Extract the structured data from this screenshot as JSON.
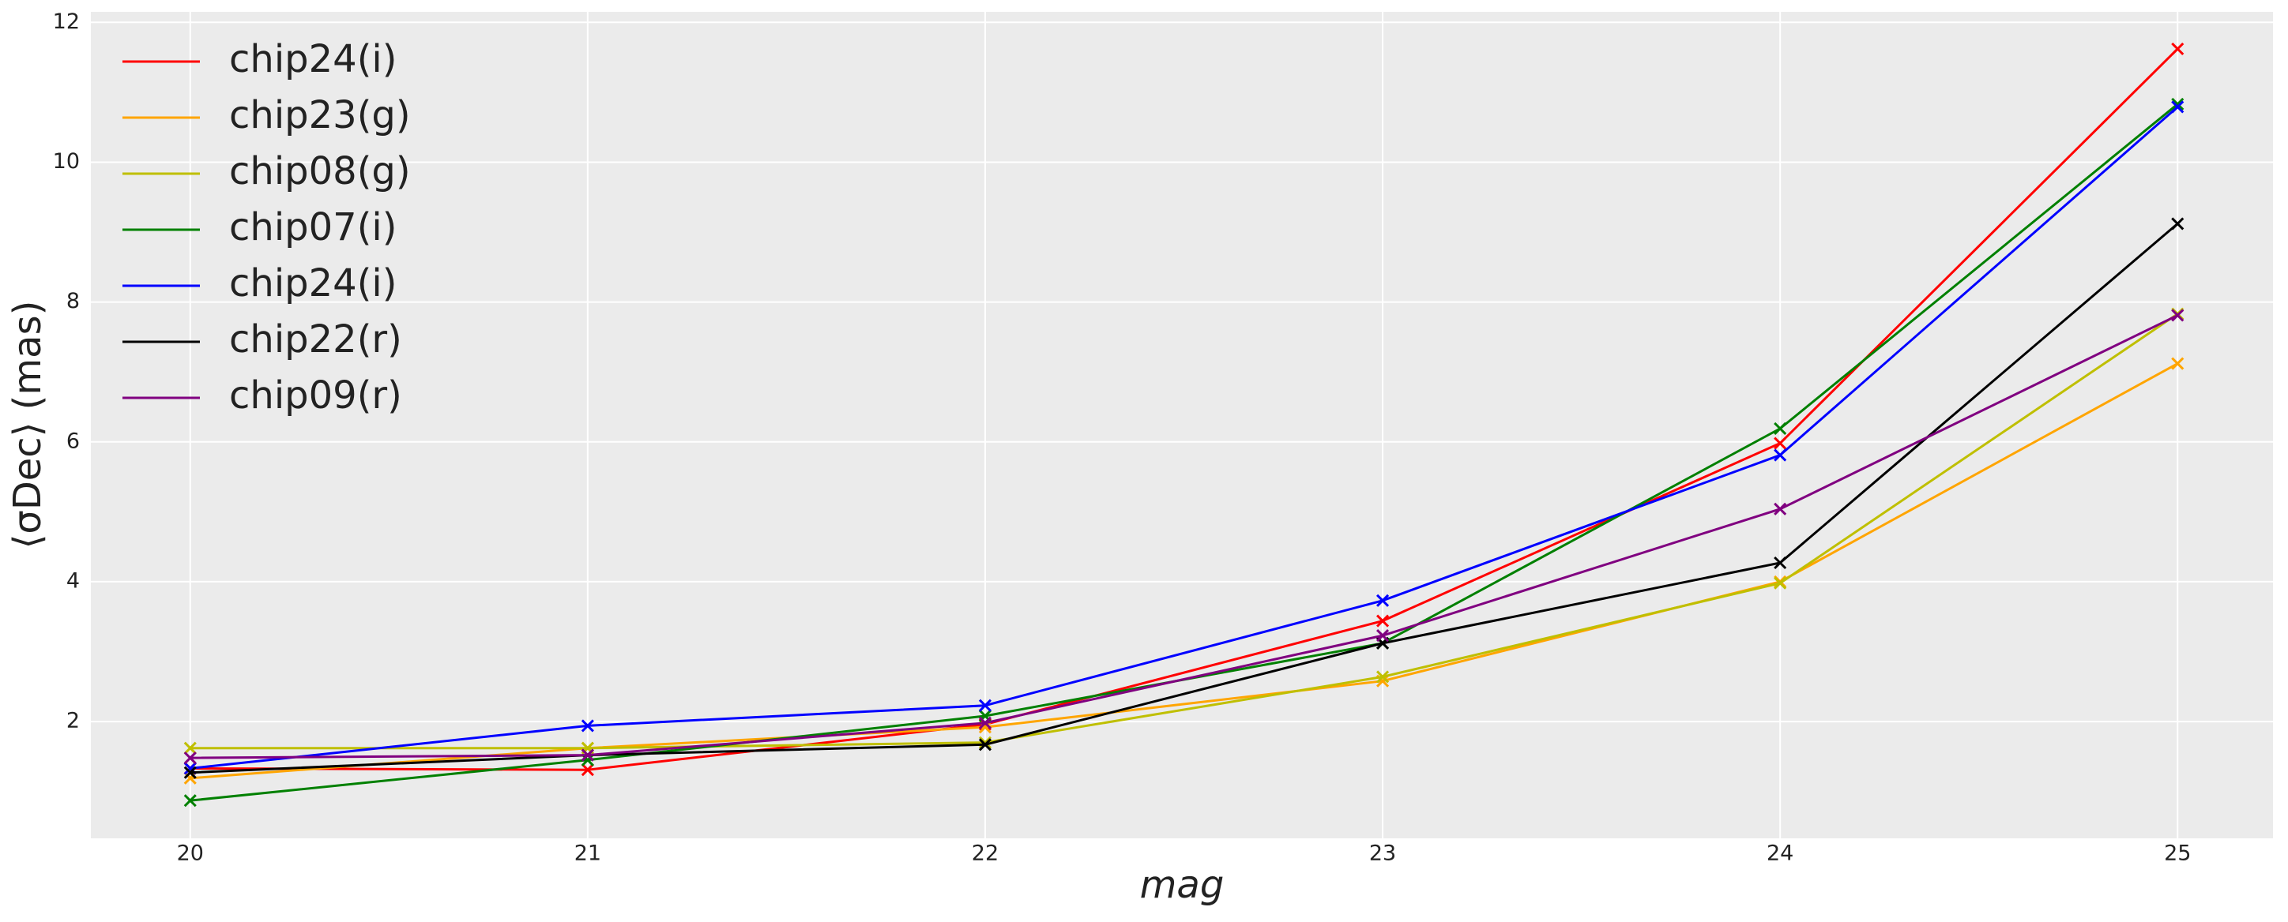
{
  "chart_data": {
    "type": "line",
    "xlabel": "mag",
    "ylabel": "⟨σDec⟩ (mas)",
    "x": [
      20,
      21,
      22,
      23,
      24,
      25
    ],
    "xlim": [
      19.75,
      25.24
    ],
    "xticks": [
      20,
      21,
      22,
      23,
      24,
      25
    ],
    "ylim": [
      0.33,
      12.15
    ],
    "yticks": [
      2,
      4,
      6,
      8,
      10,
      12
    ],
    "grid": true,
    "legend": "upper left",
    "marker": "x",
    "series": [
      {
        "name": "chip24(i)",
        "color": "#ff0000",
        "values": [
          1.33,
          1.31,
          1.96,
          3.44,
          5.98,
          11.62
        ]
      },
      {
        "name": "chip23(g)",
        "color": "#ffa500",
        "values": [
          1.19,
          1.62,
          1.92,
          2.58,
          4.0,
          7.12
        ]
      },
      {
        "name": "chip08(g)",
        "color": "#bfbf00",
        "values": [
          1.62,
          1.62,
          1.7,
          2.64,
          3.98,
          7.83
        ]
      },
      {
        "name": "chip07(i)",
        "color": "#008000",
        "values": [
          0.87,
          1.45,
          2.08,
          3.12,
          6.19,
          10.83
        ]
      },
      {
        "name": "chip24(i)",
        "color": "#0000ff",
        "values": [
          1.33,
          1.94,
          2.23,
          3.73,
          5.81,
          10.79
        ]
      },
      {
        "name": "chip22(r)",
        "color": "#000000",
        "values": [
          1.27,
          1.52,
          1.67,
          3.12,
          4.27,
          9.12
        ]
      },
      {
        "name": "chip09(r)",
        "color": "#800080",
        "values": [
          1.48,
          1.52,
          1.98,
          3.23,
          5.04,
          7.81
        ]
      }
    ]
  }
}
